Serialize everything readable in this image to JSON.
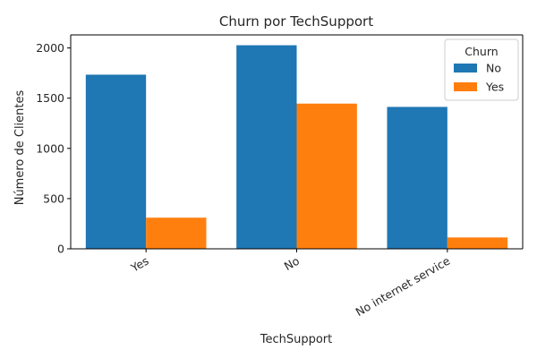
{
  "chart_data": {
    "type": "bar",
    "title": "Churn por TechSupport",
    "xlabel": "TechSupport",
    "ylabel": "Número de Clientes",
    "categories": [
      "Yes",
      "No",
      "No internet service"
    ],
    "series": [
      {
        "name": "No",
        "values": [
          1734,
          2027,
          1413
        ],
        "color": "#1f77b4"
      },
      {
        "name": "Yes",
        "values": [
          310,
          1446,
          113
        ],
        "color": "#ff7f0e"
      }
    ],
    "ylim": [
      0,
      2130
    ],
    "yticks": [
      0,
      500,
      1000,
      1500,
      2000
    ],
    "grid": false,
    "legend": {
      "title": "Churn",
      "position": "top-right"
    }
  }
}
